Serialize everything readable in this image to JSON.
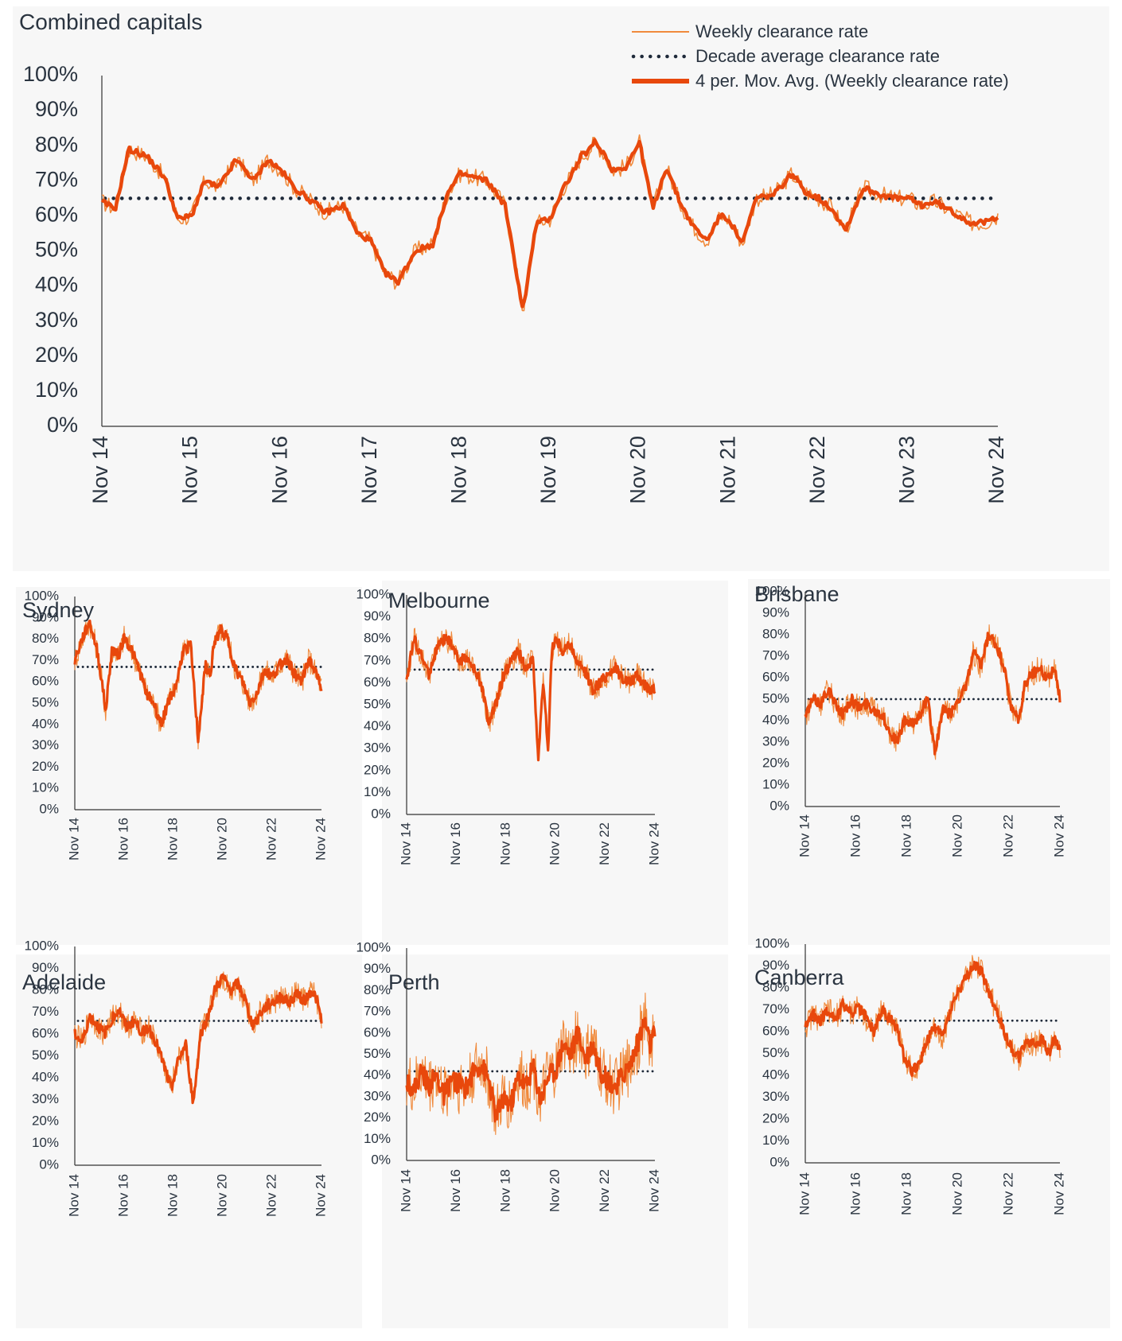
{
  "colors": {
    "weekly": "#f08a3c",
    "moving_avg": "#e8480c",
    "average_line": "#1f2a3a",
    "axis": "#333333"
  },
  "legend": {
    "weekly": "Weekly clearance rate",
    "decade_avg": "Decade average clearance rate",
    "moving_avg": "4 per. Mov. Avg. (Weekly clearance rate)"
  },
  "chart_data": [
    {
      "type": "line",
      "id": "combined",
      "title": "Combined capitals",
      "ylim": [
        0,
        100
      ],
      "yticks": [
        "0%",
        "10%",
        "20%",
        "30%",
        "40%",
        "50%",
        "60%",
        "70%",
        "80%",
        "90%",
        "100%"
      ],
      "xticks": [
        "Nov 14",
        "Nov 15",
        "Nov 16",
        "Nov 17",
        "Nov 18",
        "Nov 19",
        "Nov 20",
        "Nov 21",
        "Nov 22",
        "Nov 23",
        "Nov 24"
      ],
      "decade_average": 65,
      "x": [
        0,
        0.15,
        0.3,
        0.5,
        0.7,
        0.85,
        1,
        1.15,
        1.3,
        1.5,
        1.7,
        1.85,
        2,
        2.15,
        2.3,
        2.5,
        2.7,
        2.85,
        3,
        3.15,
        3.3,
        3.5,
        3.7,
        3.85,
        4,
        4.15,
        4.3,
        4.5,
        4.7,
        4.85,
        5,
        5.15,
        5.25,
        5.35,
        5.45,
        5.5,
        5.6,
        5.7,
        5.85,
        6,
        6.15,
        6.3,
        6.45,
        6.6,
        6.75,
        6.9,
        7,
        7.15,
        7.3,
        7.5,
        7.7,
        7.85,
        8,
        8.15,
        8.3,
        8.5,
        8.7,
        8.85,
        9,
        9.15,
        9.3,
        9.5,
        9.7,
        9.85,
        10
      ],
      "values": [
        64,
        62,
        79,
        77,
        71,
        59,
        60,
        70,
        68,
        76,
        70,
        76,
        73,
        68,
        65,
        61,
        63,
        55,
        53,
        44,
        41,
        50,
        52,
        66,
        72,
        71,
        70,
        63,
        33,
        58,
        59,
        68,
        72,
        77,
        79,
        81,
        78,
        73,
        74,
        81,
        62,
        74,
        64,
        57,
        53,
        60,
        59,
        52,
        65,
        66,
        72,
        67,
        65,
        62,
        56,
        68,
        66,
        65,
        65,
        63,
        64,
        61,
        58,
        58,
        60
      ]
    },
    {
      "type": "line",
      "id": "sydney",
      "title": "Sydney",
      "ylim": [
        0,
        100
      ],
      "yticks": [
        "0%",
        "10%",
        "20%",
        "30%",
        "40%",
        "50%",
        "60%",
        "70%",
        "80%",
        "90%",
        "100%"
      ],
      "xticks": [
        "Nov 14",
        "Nov 16",
        "Nov 18",
        "Nov 20",
        "Nov 22",
        "Nov 24"
      ],
      "decade_average": 67,
      "x": [
        0,
        0.3,
        0.6,
        0.9,
        1.1,
        1.25,
        1.5,
        1.8,
        2,
        2.3,
        2.6,
        2.9,
        3.2,
        3.5,
        3.8,
        4.1,
        4.4,
        4.7,
        5,
        5.3,
        5.5,
        5.6,
        5.9,
        6.2,
        6.5,
        6.8,
        7.1,
        7.4,
        7.7,
        8,
        8.3,
        8.6,
        8.9,
        9.2,
        9.5,
        9.8,
        10
      ],
      "values": [
        70,
        80,
        88,
        75,
        60,
        46,
        75,
        73,
        81,
        75,
        66,
        55,
        50,
        40,
        51,
        58,
        75,
        77,
        33,
        68,
        62,
        75,
        85,
        80,
        66,
        60,
        50,
        55,
        66,
        62,
        68,
        71,
        64,
        60,
        71,
        63,
        58
      ]
    },
    {
      "type": "line",
      "id": "melbourne",
      "title": "Melbourne",
      "ylim": [
        0,
        100
      ],
      "yticks": [
        "0%",
        "10%",
        "20%",
        "30%",
        "40%",
        "50%",
        "60%",
        "70%",
        "80%",
        "90%",
        "100%"
      ],
      "xticks": [
        "Nov 14",
        "Nov 16",
        "Nov 18",
        "Nov 20",
        "Nov 22",
        "Nov 24"
      ],
      "decade_average": 66,
      "x": [
        0,
        0.3,
        0.6,
        0.9,
        1.2,
        1.5,
        1.8,
        2.1,
        2.4,
        2.7,
        3,
        3.3,
        3.6,
        3.9,
        4.2,
        4.5,
        4.8,
        5.1,
        5.3,
        5.5,
        5.7,
        5.85,
        6,
        6.3,
        6.6,
        6.9,
        7.2,
        7.5,
        7.8,
        8.1,
        8.4,
        8.7,
        9,
        9.3,
        9.6,
        9.8,
        10
      ],
      "values": [
        62,
        80,
        72,
        64,
        75,
        80,
        78,
        70,
        72,
        66,
        60,
        42,
        50,
        63,
        70,
        74,
        67,
        70,
        25,
        60,
        30,
        75,
        80,
        74,
        78,
        68,
        65,
        57,
        60,
        64,
        67,
        62,
        60,
        63,
        59,
        57,
        58
      ]
    },
    {
      "type": "line",
      "id": "brisbane",
      "title": "Brisbane",
      "ylim": [
        0,
        100
      ],
      "yticks": [
        "0%",
        "10%",
        "20%",
        "30%",
        "40%",
        "50%",
        "60%",
        "70%",
        "80%",
        "90%",
        "100%"
      ],
      "xticks": [
        "Nov 14",
        "Nov 16",
        "Nov 18",
        "Nov 20",
        "Nov 22",
        "Nov 24"
      ],
      "decade_average": 50,
      "x": [
        0,
        0.3,
        0.6,
        0.9,
        1.2,
        1.5,
        1.8,
        2.1,
        2.4,
        2.7,
        3,
        3.3,
        3.6,
        3.9,
        4.2,
        4.5,
        4.8,
        5.1,
        5.4,
        5.7,
        6,
        6.3,
        6.6,
        6.9,
        7.2,
        7.5,
        7.8,
        8.1,
        8.4,
        8.6,
        8.9,
        9.2,
        9.5,
        9.8,
        10
      ],
      "values": [
        42,
        50,
        48,
        55,
        47,
        43,
        50,
        46,
        48,
        45,
        43,
        35,
        30,
        40,
        38,
        43,
        50,
        25,
        45,
        43,
        50,
        55,
        72,
        65,
        80,
        75,
        65,
        45,
        40,
        56,
        62,
        64,
        60,
        64,
        50
      ]
    },
    {
      "type": "line",
      "id": "adelaide",
      "title": "Adelaide",
      "ylim": [
        0,
        100
      ],
      "yticks": [
        "0%",
        "10%",
        "20%",
        "30%",
        "40%",
        "50%",
        "60%",
        "70%",
        "80%",
        "90%",
        "100%"
      ],
      "xticks": [
        "Nov 14",
        "Nov 16",
        "Nov 18",
        "Nov 20",
        "Nov 22",
        "Nov 24"
      ],
      "decade_average": 66,
      "x": [
        0,
        0.3,
        0.6,
        0.9,
        1.2,
        1.5,
        1.8,
        2.1,
        2.4,
        2.7,
        3,
        3.3,
        3.6,
        3.9,
        4.2,
        4.5,
        4.8,
        5.1,
        5.4,
        5.7,
        6,
        6.3,
        6.6,
        6.9,
        7.2,
        7.5,
        7.8,
        8.1,
        8.4,
        8.7,
        9,
        9.3,
        9.6,
        9.8,
        10
      ],
      "values": [
        60,
        56,
        68,
        64,
        60,
        67,
        71,
        63,
        66,
        61,
        63,
        56,
        46,
        35,
        48,
        55,
        28,
        60,
        68,
        81,
        86,
        80,
        83,
        76,
        64,
        69,
        73,
        75,
        77,
        74,
        79,
        75,
        80,
        76,
        66
      ]
    },
    {
      "type": "line",
      "id": "perth",
      "title": "Perth",
      "ylim": [
        0,
        100
      ],
      "yticks": [
        "0%",
        "10%",
        "20%",
        "30%",
        "40%",
        "50%",
        "60%",
        "70%",
        "80%",
        "90%",
        "100%"
      ],
      "xticks": [
        "Nov 14",
        "Nov 16",
        "Nov 18",
        "Nov 20",
        "Nov 22",
        "Nov 24"
      ],
      "decade_average": 42,
      "x": [
        0,
        0.3,
        0.6,
        0.9,
        1.2,
        1.5,
        1.8,
        2.1,
        2.4,
        2.7,
        3,
        3.3,
        3.6,
        3.9,
        4.2,
        4.5,
        4.8,
        5.1,
        5.4,
        5.7,
        6,
        6.3,
        6.6,
        6.9,
        7.2,
        7.5,
        7.8,
        8.1,
        8.4,
        8.7,
        9,
        9.3,
        9.6,
        9.8,
        10
      ],
      "values": [
        38,
        33,
        42,
        35,
        40,
        30,
        38,
        36,
        34,
        42,
        45,
        38,
        20,
        30,
        26,
        40,
        35,
        44,
        28,
        40,
        42,
        55,
        50,
        60,
        48,
        55,
        42,
        38,
        35,
        40,
        45,
        55,
        66,
        54,
        60
      ]
    },
    {
      "type": "line",
      "id": "canberra",
      "title": "Canberra",
      "ylim": [
        0,
        100
      ],
      "yticks": [
        "0%",
        "10%",
        "20%",
        "30%",
        "40%",
        "50%",
        "60%",
        "70%",
        "80%",
        "90%",
        "100%"
      ],
      "xticks": [
        "Nov 14",
        "Nov 16",
        "Nov 18",
        "Nov 20",
        "Nov 22",
        "Nov 24"
      ],
      "decade_average": 65,
      "x": [
        0,
        0.3,
        0.6,
        0.9,
        1.2,
        1.5,
        1.8,
        2.1,
        2.4,
        2.7,
        3,
        3.3,
        3.6,
        3.9,
        4.2,
        4.5,
        4.8,
        5.1,
        5.4,
        5.7,
        6,
        6.3,
        6.6,
        6.9,
        7.2,
        7.5,
        7.8,
        8.1,
        8.4,
        8.7,
        9,
        9.3,
        9.6,
        9.8,
        10
      ],
      "values": [
        62,
        68,
        65,
        70,
        66,
        73,
        68,
        71,
        66,
        60,
        70,
        66,
        62,
        48,
        42,
        46,
        56,
        62,
        58,
        70,
        78,
        84,
        90,
        88,
        78,
        70,
        60,
        52,
        48,
        56,
        54,
        56,
        50,
        58,
        52
      ]
    }
  ]
}
